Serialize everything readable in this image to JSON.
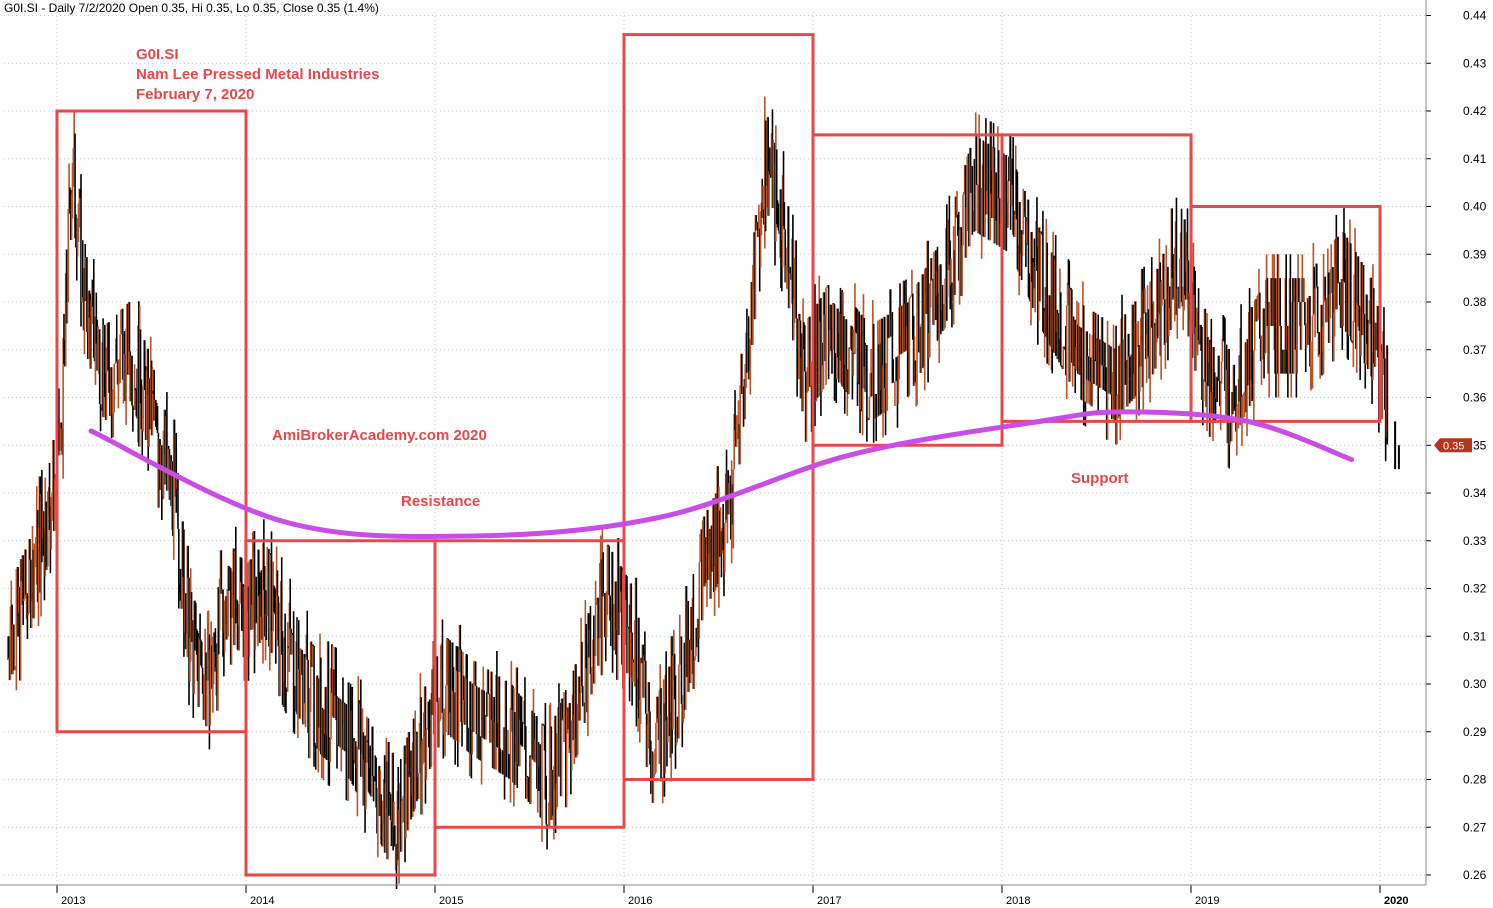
{
  "header": {
    "text": "G0I.SI - Daily 7/2/2020 Open 0.35, Hi 0.35, Lo 0.35, Close 0.35 (1.4%)"
  },
  "annotations": {
    "ticker": "G0I.SI",
    "company": "Nam Lee Pressed Metal Industries",
    "date": "February 7, 2020",
    "watermark": "AmiBrokerAcademy.com  2020",
    "resistance": "Resistance",
    "support": "Support"
  },
  "colors": {
    "box": "#e8484a",
    "curve": "#c94de6",
    "bar_up": "#b5542a",
    "bar_down": "#000000",
    "price_tag": "#b5361b"
  },
  "chart_data": {
    "type": "bar",
    "title": "G0I.SI",
    "y_ticks": [
      "0.26",
      "0.27",
      "0.28",
      "0.29",
      "0.30",
      "0.31",
      "0.32",
      "0.33",
      "0.34",
      "0.35",
      "0.36",
      "0.37",
      "0.38",
      "0.39",
      "0.40",
      "0.41",
      "0.42",
      "0.43",
      "0.44"
    ],
    "x_ticks": [
      "2013",
      "2014",
      "2015",
      "2016",
      "2017",
      "2018",
      "2019",
      "2020"
    ],
    "ylim": [
      0.255,
      0.445
    ],
    "last_price_label": "0.35",
    "boxes": [
      {
        "from": 2013.0,
        "to": 2014.0,
        "low": 0.29,
        "high": 0.42
      },
      {
        "from": 2014.0,
        "to": 2015.0,
        "low": 0.26,
        "high": 0.33
      },
      {
        "from": 2015.0,
        "to": 2016.0,
        "low": 0.27,
        "high": 0.33
      },
      {
        "from": 2016.0,
        "to": 2017.0,
        "low": 0.28,
        "high": 0.436
      },
      {
        "from": 2017.0,
        "to": 2018.0,
        "low": 0.35,
        "high": 0.415
      },
      {
        "from": 2018.0,
        "to": 2019.0,
        "low": 0.355,
        "high": 0.415
      },
      {
        "from": 2019.0,
        "to": 2020.0,
        "low": 0.355,
        "high": 0.4
      }
    ],
    "trend_curve": [
      {
        "x": 2013.18,
        "y": 0.353
      },
      {
        "x": 2014.2,
        "y": 0.334
      },
      {
        "x": 2015.2,
        "y": 0.331
      },
      {
        "x": 2016.2,
        "y": 0.335
      },
      {
        "x": 2017.2,
        "y": 0.348
      },
      {
        "x": 2018.2,
        "y": 0.355
      },
      {
        "x": 2018.65,
        "y": 0.357
      },
      {
        "x": 2019.3,
        "y": 0.355
      },
      {
        "x": 2019.85,
        "y": 0.347
      }
    ],
    "price_path": [
      {
        "x": 2012.74,
        "y": 0.31
      },
      {
        "x": 2012.85,
        "y": 0.32
      },
      {
        "x": 2012.95,
        "y": 0.335
      },
      {
        "x": 2013.02,
        "y": 0.35
      },
      {
        "x": 2013.08,
        "y": 0.41
      },
      {
        "x": 2013.15,
        "y": 0.38
      },
      {
        "x": 2013.25,
        "y": 0.365
      },
      {
        "x": 2013.38,
        "y": 0.37
      },
      {
        "x": 2013.48,
        "y": 0.36
      },
      {
        "x": 2013.55,
        "y": 0.35
      },
      {
        "x": 2013.62,
        "y": 0.34
      },
      {
        "x": 2013.7,
        "y": 0.31
      },
      {
        "x": 2013.8,
        "y": 0.3
      },
      {
        "x": 2013.9,
        "y": 0.32
      },
      {
        "x": 2014.0,
        "y": 0.315
      },
      {
        "x": 2014.1,
        "y": 0.32
      },
      {
        "x": 2014.25,
        "y": 0.305
      },
      {
        "x": 2014.4,
        "y": 0.295
      },
      {
        "x": 2014.55,
        "y": 0.29
      },
      {
        "x": 2014.68,
        "y": 0.28
      },
      {
        "x": 2014.78,
        "y": 0.27
      },
      {
        "x": 2014.9,
        "y": 0.285
      },
      {
        "x": 2015.05,
        "y": 0.3
      },
      {
        "x": 2015.2,
        "y": 0.295
      },
      {
        "x": 2015.4,
        "y": 0.29
      },
      {
        "x": 2015.6,
        "y": 0.28
      },
      {
        "x": 2015.75,
        "y": 0.295
      },
      {
        "x": 2015.9,
        "y": 0.32
      },
      {
        "x": 2016.05,
        "y": 0.31
      },
      {
        "x": 2016.15,
        "y": 0.285
      },
      {
        "x": 2016.3,
        "y": 0.3
      },
      {
        "x": 2016.42,
        "y": 0.325
      },
      {
        "x": 2016.55,
        "y": 0.335
      },
      {
        "x": 2016.65,
        "y": 0.37
      },
      {
        "x": 2016.75,
        "y": 0.41
      },
      {
        "x": 2016.85,
        "y": 0.395
      },
      {
        "x": 2016.95,
        "y": 0.365
      },
      {
        "x": 2017.1,
        "y": 0.375
      },
      {
        "x": 2017.3,
        "y": 0.365
      },
      {
        "x": 2017.5,
        "y": 0.37
      },
      {
        "x": 2017.7,
        "y": 0.385
      },
      {
        "x": 2017.85,
        "y": 0.405
      },
      {
        "x": 2018.05,
        "y": 0.4
      },
      {
        "x": 2018.2,
        "y": 0.385
      },
      {
        "x": 2018.4,
        "y": 0.37
      },
      {
        "x": 2018.6,
        "y": 0.365
      },
      {
        "x": 2018.8,
        "y": 0.375
      },
      {
        "x": 2018.95,
        "y": 0.39
      },
      {
        "x": 2019.05,
        "y": 0.37
      },
      {
        "x": 2019.2,
        "y": 0.36
      },
      {
        "x": 2019.4,
        "y": 0.375
      },
      {
        "x": 2019.6,
        "y": 0.375
      },
      {
        "x": 2019.8,
        "y": 0.385
      },
      {
        "x": 2019.95,
        "y": 0.375
      },
      {
        "x": 2020.1,
        "y": 0.35
      }
    ]
  }
}
